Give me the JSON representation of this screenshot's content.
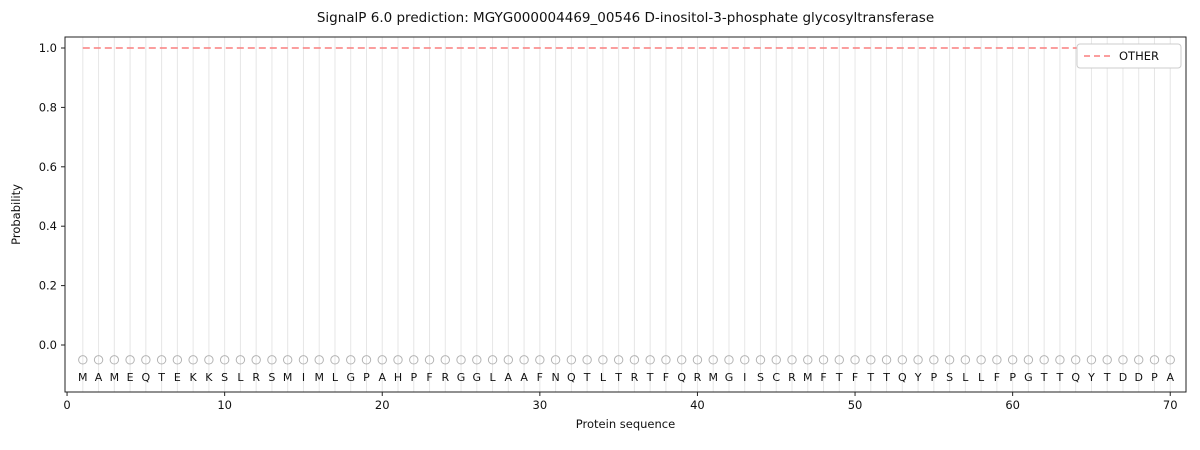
{
  "chart_data": {
    "type": "line",
    "title": "SignalP 6.0 prediction: MGYG000004469_00546 D-inositol-3-phosphate glycosyltransferase",
    "xlabel": "Protein sequence",
    "ylabel": "Probability",
    "xticks": [
      0,
      10,
      20,
      30,
      40,
      50,
      60,
      70
    ],
    "yticks": [
      0.0,
      0.2,
      0.4,
      0.6,
      0.8,
      1.0
    ],
    "xlim": [
      -0.13,
      71.0
    ],
    "ylim": [
      -0.16,
      1.04
    ],
    "grid": "vertical-per-residue",
    "legend_position": "top-right",
    "sequence": "MAMEQTEKKSLRSMIMLGPAHPFRGGLAAFNQTLTRTFQRMGISCRMFTFTTQYPSLLFPGTTQYTDDPA",
    "marker_y": -0.05,
    "marker_style": "open-circle",
    "series": [
      {
        "name": "OTHER",
        "color": "#fa7f7f",
        "dash": true,
        "x_start": 1,
        "values": [
          1.0,
          1.0,
          1.0,
          1.0,
          1.0,
          1.0,
          1.0,
          1.0,
          1.0,
          1.0,
          1.0,
          1.0,
          1.0,
          1.0,
          1.0,
          1.0,
          1.0,
          1.0,
          1.0,
          1.0,
          1.0,
          1.0,
          1.0,
          1.0,
          1.0,
          1.0,
          1.0,
          1.0,
          1.0,
          1.0,
          1.0,
          1.0,
          1.0,
          1.0,
          1.0,
          1.0,
          1.0,
          1.0,
          1.0,
          1.0,
          1.0,
          1.0,
          1.0,
          1.0,
          1.0,
          1.0,
          1.0,
          1.0,
          1.0,
          1.0,
          1.0,
          1.0,
          1.0,
          1.0,
          1.0,
          1.0,
          1.0,
          1.0,
          1.0,
          1.0,
          1.0,
          1.0,
          1.0,
          1.0,
          1.0,
          1.0,
          1.0,
          1.0,
          1.0,
          1.0
        ]
      }
    ],
    "colors": {
      "grid": "#e6e6e6",
      "axis": "#222222",
      "marker_stroke": "#b3b3b3",
      "text": "#111111",
      "legend_border": "#cccccc"
    }
  }
}
